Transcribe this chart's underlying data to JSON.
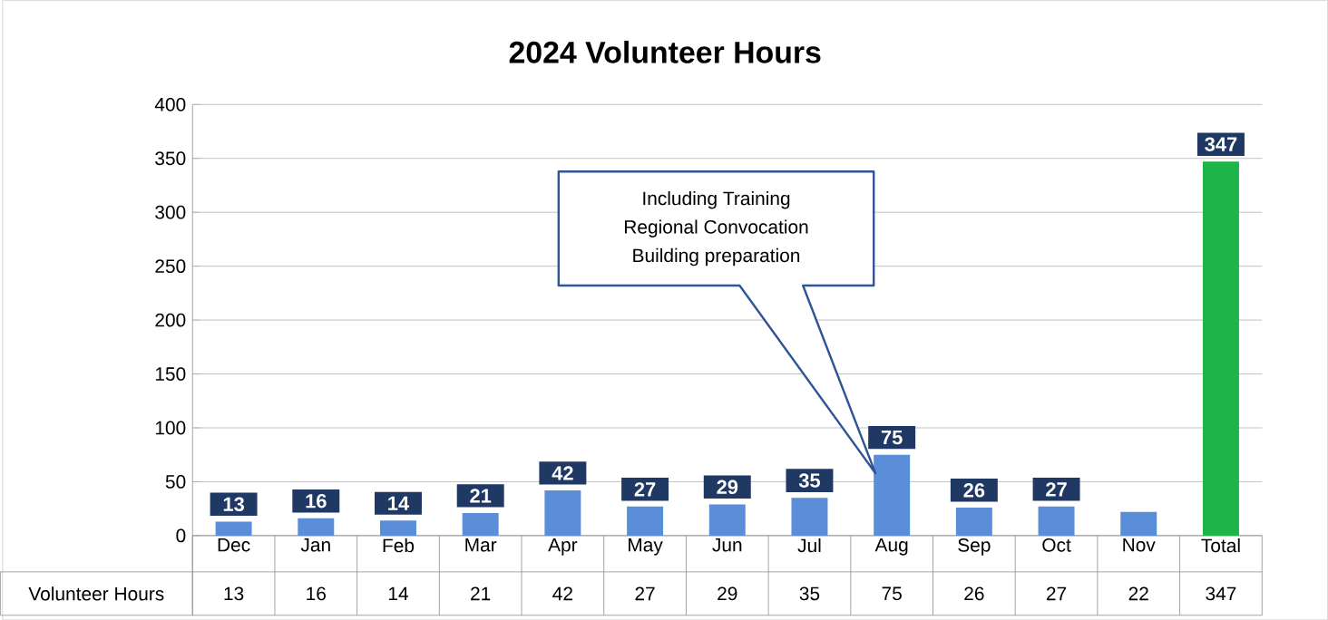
{
  "chart_data": {
    "type": "bar",
    "title": "2024 Volunteer Hours",
    "categories": [
      "Dec",
      "Jan",
      "Feb",
      "Mar",
      "Apr",
      "May",
      "Jun",
      "Jul",
      "Aug",
      "Sep",
      "Oct",
      "Nov",
      "Total"
    ],
    "series": [
      {
        "name": "Volunteer Hours",
        "values": [
          13,
          16,
          14,
          21,
          42,
          27,
          29,
          35,
          75,
          26,
          27,
          22,
          347
        ],
        "colors": [
          "#5b8ed8",
          "#5b8ed8",
          "#5b8ed8",
          "#5b8ed8",
          "#5b8ed8",
          "#5b8ed8",
          "#5b8ed8",
          "#5b8ed8",
          "#5b8ed8",
          "#5b8ed8",
          "#5b8ed8",
          "#5b8ed8",
          "#1db449"
        ],
        "value_labels": [
          "13",
          "16",
          "14",
          "21",
          "42",
          "27",
          "29",
          "35",
          "75",
          "26",
          "27",
          "22",
          "347"
        ]
      }
    ],
    "ylim": [
      0,
      400
    ],
    "yticks": [
      0,
      50,
      100,
      150,
      200,
      250,
      300,
      350,
      400
    ],
    "grid": "y",
    "annotations": [
      {
        "text": "13",
        "x": "Dec",
        "y": 13
      },
      {
        "text": "16",
        "x": "Jan",
        "y": 16
      },
      {
        "text": "14",
        "x": "Feb",
        "y": 14
      },
      {
        "text": "21",
        "x": "Mar",
        "y": 21
      },
      {
        "text": "42",
        "x": "Apr",
        "y": 42
      },
      {
        "text": "27",
        "x": "May",
        "y": 27
      },
      {
        "text": "29",
        "x": "Jun",
        "y": 29
      },
      {
        "text": "35",
        "x": "Jul",
        "y": 35
      },
      {
        "text": "75",
        "x": "Aug",
        "y": 75
      },
      {
        "text": "26",
        "x": "Sep",
        "y": 26
      },
      {
        "text": "27",
        "x": "Oct",
        "y": 27
      },
      {
        "text": "347",
        "x": "Total",
        "y": 347
      },
      "Including Training",
      "Regional Convocation",
      "Building preparation"
    ]
  }
}
